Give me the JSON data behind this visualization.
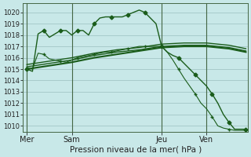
{
  "title": "Pression niveau de la mer( hPa )",
  "bg_color": "#c8e8e8",
  "grid_color": "#9bbfbf",
  "line_color": "#1a5c1a",
  "ylim": [
    1009.5,
    1020.8
  ],
  "yticks": [
    1010,
    1011,
    1012,
    1013,
    1014,
    1015,
    1016,
    1017,
    1018,
    1019,
    1020
  ],
  "x_day_labels": [
    {
      "label": "Mer",
      "x": 0
    },
    {
      "label": "Sam",
      "x": 24
    },
    {
      "label": "Jeu",
      "x": 72
    },
    {
      "label": "Ven",
      "x": 96
    }
  ],
  "x_day_vlines": [
    0,
    24,
    72,
    96
  ],
  "xlim": [
    -2,
    118
  ],
  "series": [
    {
      "x": [
        0,
        3,
        6,
        9,
        12,
        15,
        18,
        21,
        24,
        27,
        30,
        33,
        36,
        39,
        42,
        45,
        48,
        51,
        54,
        57,
        60,
        63,
        66,
        69,
        72,
        75,
        78,
        81,
        84,
        87,
        90,
        93,
        96,
        99,
        102,
        105,
        108,
        111,
        114,
        117
      ],
      "y": [
        1015.0,
        1014.8,
        1018.1,
        1018.4,
        1017.8,
        1018.1,
        1018.4,
        1018.4,
        1018.0,
        1018.4,
        1018.4,
        1018.0,
        1019.0,
        1019.5,
        1019.6,
        1019.6,
        1019.6,
        1019.6,
        1019.8,
        1020.0,
        1020.2,
        1020.0,
        1019.5,
        1019.0,
        1017.0,
        1016.5,
        1016.2,
        1016.0,
        1015.5,
        1015.0,
        1014.5,
        1014.0,
        1013.5,
        1012.8,
        1012.0,
        1011.0,
        1010.3,
        1009.7,
        1009.7,
        1009.7
      ],
      "marker": "D",
      "markersize": 2.5,
      "linewidth": 1.0,
      "markevery": 3
    },
    {
      "x": [
        0,
        3,
        6,
        9,
        12,
        15,
        18,
        21,
        24,
        27,
        30,
        33,
        36,
        39,
        42,
        45,
        48,
        51,
        54,
        57,
        60,
        63,
        66,
        69,
        72,
        75,
        78,
        81,
        84,
        87,
        90,
        93,
        96,
        99,
        102,
        105,
        108,
        111,
        114,
        117
      ],
      "y": [
        1015.1,
        1015.0,
        1016.4,
        1016.3,
        1015.9,
        1015.8,
        1015.7,
        1015.6,
        1015.8,
        1016.0,
        1016.1,
        1016.2,
        1016.3,
        1016.4,
        1016.5,
        1016.5,
        1016.6,
        1016.7,
        1016.8,
        1016.9,
        1017.0,
        1017.0,
        1017.0,
        1017.0,
        1017.0,
        1016.5,
        1015.8,
        1015.0,
        1014.2,
        1013.5,
        1012.8,
        1012.0,
        1011.5,
        1010.8,
        1010.0,
        1009.8,
        1009.7,
        1009.6,
        1009.6,
        1009.6
      ],
      "marker": "+",
      "markersize": 3.5,
      "linewidth": 0.8,
      "markevery": 3
    },
    {
      "x": [
        0,
        12,
        24,
        36,
        48,
        60,
        72,
        84,
        96,
        108,
        117
      ],
      "y": [
        1015.0,
        1015.3,
        1015.6,
        1016.0,
        1016.3,
        1016.6,
        1016.9,
        1017.0,
        1017.0,
        1016.8,
        1016.5
      ],
      "marker": null,
      "linewidth": 1.5
    },
    {
      "x": [
        0,
        12,
        24,
        36,
        48,
        60,
        72,
        84,
        96,
        108,
        117
      ],
      "y": [
        1015.2,
        1015.5,
        1015.8,
        1016.2,
        1016.5,
        1016.7,
        1017.0,
        1017.1,
        1017.1,
        1016.9,
        1016.6
      ],
      "marker": null,
      "linewidth": 1.0
    },
    {
      "x": [
        0,
        12,
        24,
        36,
        48,
        60,
        72,
        84,
        96,
        108,
        117
      ],
      "y": [
        1015.4,
        1015.7,
        1016.0,
        1016.4,
        1016.7,
        1016.9,
        1017.2,
        1017.3,
        1017.3,
        1017.1,
        1016.8
      ],
      "marker": null,
      "linewidth": 1.0
    }
  ]
}
